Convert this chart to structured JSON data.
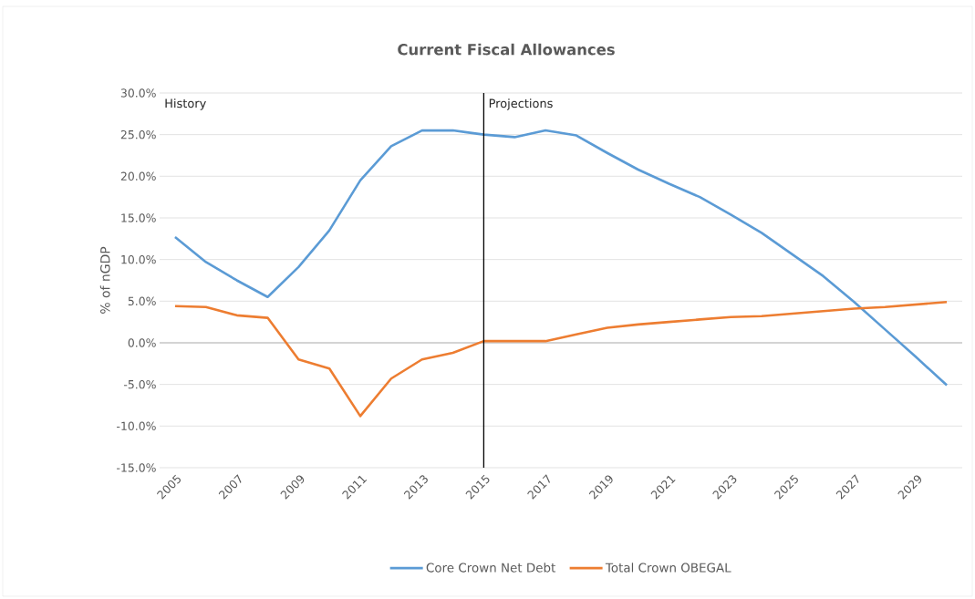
{
  "chart_data": {
    "type": "line",
    "title": "Current Fiscal Allowances",
    "ylabel": "% of nGDP",
    "x": [
      2005,
      2006,
      2007,
      2008,
      2009,
      2010,
      2011,
      2012,
      2013,
      2014,
      2015,
      2016,
      2017,
      2018,
      2019,
      2020,
      2021,
      2022,
      2023,
      2024,
      2025,
      2026,
      2027,
      2028,
      2029,
      2030
    ],
    "series": [
      {
        "name": "Core Crown Net Debt",
        "color": "#5b9bd5",
        "values": [
          12.7,
          9.7,
          7.5,
          5.5,
          9.1,
          13.5,
          19.5,
          23.6,
          25.5,
          25.5,
          25.0,
          24.7,
          25.5,
          24.9,
          22.8,
          20.8,
          19.1,
          17.5,
          15.4,
          13.2,
          10.6,
          8.0,
          4.9,
          1.6,
          -1.7,
          -5.1
        ]
      },
      {
        "name": "Total Crown OBEGAL",
        "color": "#ed7d31",
        "values": [
          4.4,
          4.3,
          3.3,
          3.0,
          -2.0,
          -3.1,
          -8.8,
          -4.3,
          -2.0,
          -1.2,
          0.2,
          0.2,
          0.2,
          1.0,
          1.8,
          2.2,
          2.5,
          2.8,
          3.1,
          3.2,
          3.5,
          3.8,
          4.1,
          4.3,
          4.6,
          4.9
        ]
      }
    ],
    "xlim": [
      2004.5,
      2030.5
    ],
    "xticks": [
      2005,
      2007,
      2009,
      2011,
      2013,
      2015,
      2017,
      2019,
      2021,
      2023,
      2025,
      2027,
      2029
    ],
    "ylim": [
      -15,
      30
    ],
    "yticks": [
      {
        "value": -15,
        "label": "-15.0%"
      },
      {
        "value": -10,
        "label": "-10.0%"
      },
      {
        "value": -5,
        "label": "-5.0%"
      },
      {
        "value": 0,
        "label": "0.0%"
      },
      {
        "value": 5,
        "label": "5.0%"
      },
      {
        "value": 10,
        "label": "10.0%"
      },
      {
        "value": 15,
        "label": "15.0%"
      },
      {
        "value": 20,
        "label": "20.0%"
      },
      {
        "value": 25,
        "label": "25.0%"
      },
      {
        "value": 30,
        "label": "30.0%"
      }
    ],
    "ref_lines": [
      {
        "axis": "x",
        "value": 2015,
        "color": "#000000"
      }
    ],
    "annotations": [
      "History",
      "Projections"
    ],
    "grid": "y",
    "legend": "bottom",
    "marker": "none",
    "line_style": "solid"
  }
}
